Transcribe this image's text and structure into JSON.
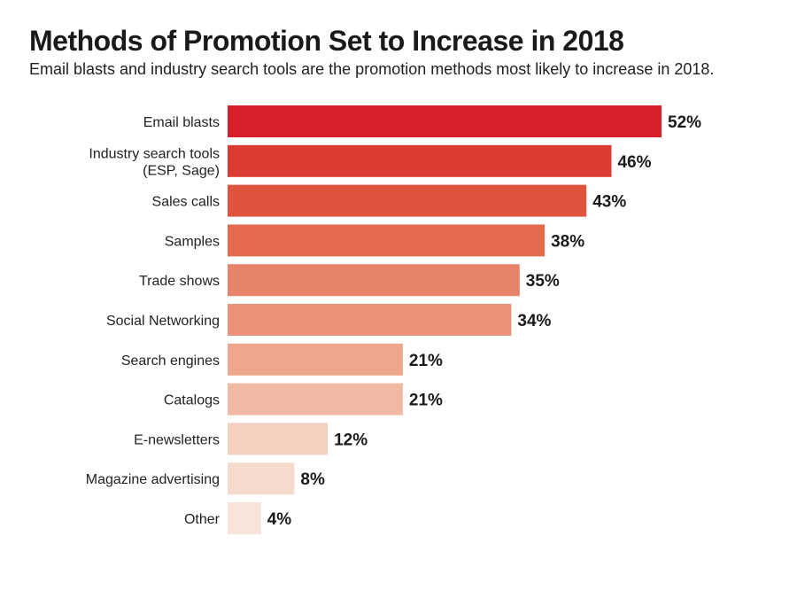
{
  "chart_data": {
    "type": "bar",
    "orientation": "horizontal",
    "title": "Methods of Promotion Set to Increase in 2018",
    "subtitle": "Email blasts and industry search tools are the promotion methods most likely to increase in 2018.",
    "categories": [
      [
        "Email blasts"
      ],
      [
        "Industry search tools",
        "(ESP, Sage)"
      ],
      [
        "Sales calls"
      ],
      [
        "Samples"
      ],
      [
        "Trade shows"
      ],
      [
        "Social Networking"
      ],
      [
        "Search engines"
      ],
      [
        "Catalogs"
      ],
      [
        "E-newsletters"
      ],
      [
        "Magazine advertising"
      ],
      [
        "Other"
      ]
    ],
    "values": [
      52,
      46,
      43,
      38,
      35,
      34,
      21,
      21,
      12,
      8,
      4
    ],
    "value_labels": [
      "52%",
      "46%",
      "43%",
      "38%",
      "35%",
      "34%",
      "21%",
      "21%",
      "12%",
      "8%",
      "4%"
    ],
    "unit": "%",
    "xlim": [
      0,
      52
    ],
    "grid": false,
    "legend": "none",
    "colors": [
      "#d7202a",
      "#dc3b33",
      "#e0533d",
      "#e46a4e",
      "#e7836a",
      "#ea927a",
      "#eea68c",
      "#f1b9a4",
      "#f5cfc0",
      "#f7dace",
      "#f9e4da"
    ]
  }
}
